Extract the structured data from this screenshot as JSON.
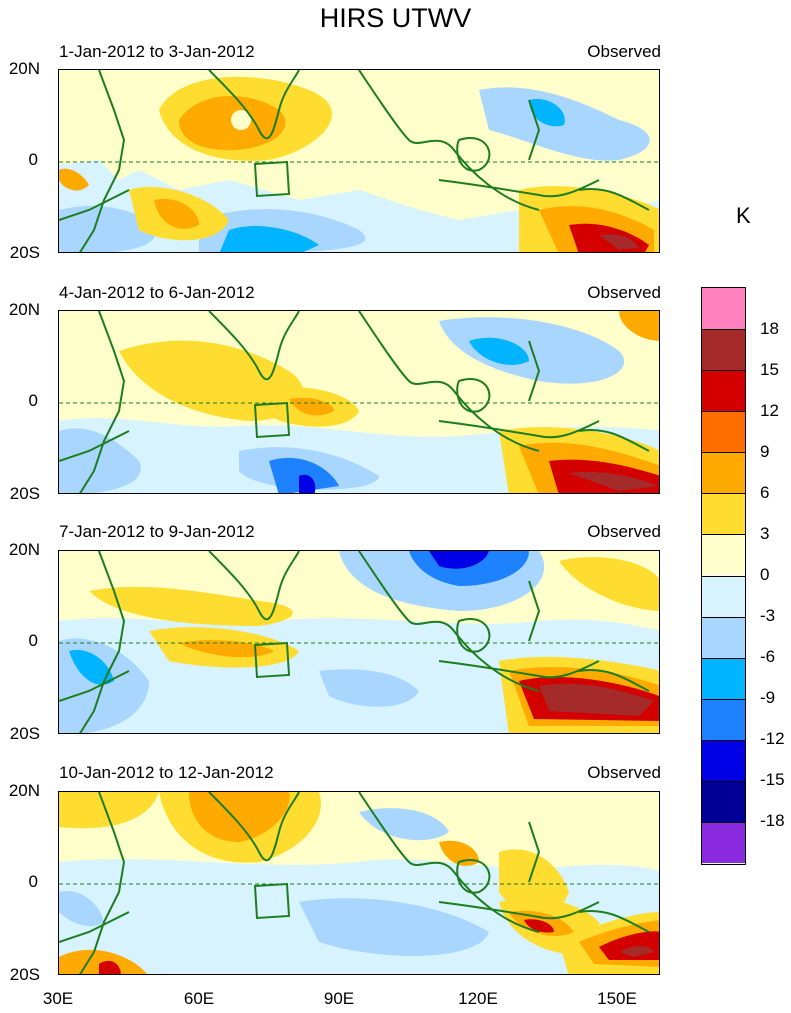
{
  "title": "HIRS UTWV",
  "unit": "K",
  "panels": [
    {
      "date": "1-Jan-2012 to 3-Jan-2012",
      "tag": "Observed"
    },
    {
      "date": "4-Jan-2012 to 6-Jan-2012",
      "tag": "Observed"
    },
    {
      "date": "7-Jan-2012 to 9-Jan-2012",
      "tag": "Observed"
    },
    {
      "date": "10-Jan-2012 to 12-Jan-2012",
      "tag": "Observed"
    }
  ],
  "lat_labels": {
    "north": "20N",
    "equator": "0",
    "south": "20S"
  },
  "lon_labels": [
    "30E",
    "60E",
    "90E",
    "120E",
    "150E"
  ],
  "colorbar": {
    "labels": [
      "18",
      "15",
      "12",
      "9",
      "6",
      "3",
      "0",
      "-3",
      "-6",
      "-9",
      "-12",
      "-15",
      "-18"
    ],
    "colors": [
      "#ff7fbf",
      "#a52a2a",
      "#d40000",
      "#ff6f00",
      "#ffaa00",
      "#ffdc30",
      "#ffffcc",
      "#d6f3ff",
      "#a9d6ff",
      "#00b4ff",
      "#1e82ff",
      "#0000e6",
      "#000096",
      "#8a2be2"
    ]
  },
  "colors": {
    "coast": "#1e7d1e"
  }
}
